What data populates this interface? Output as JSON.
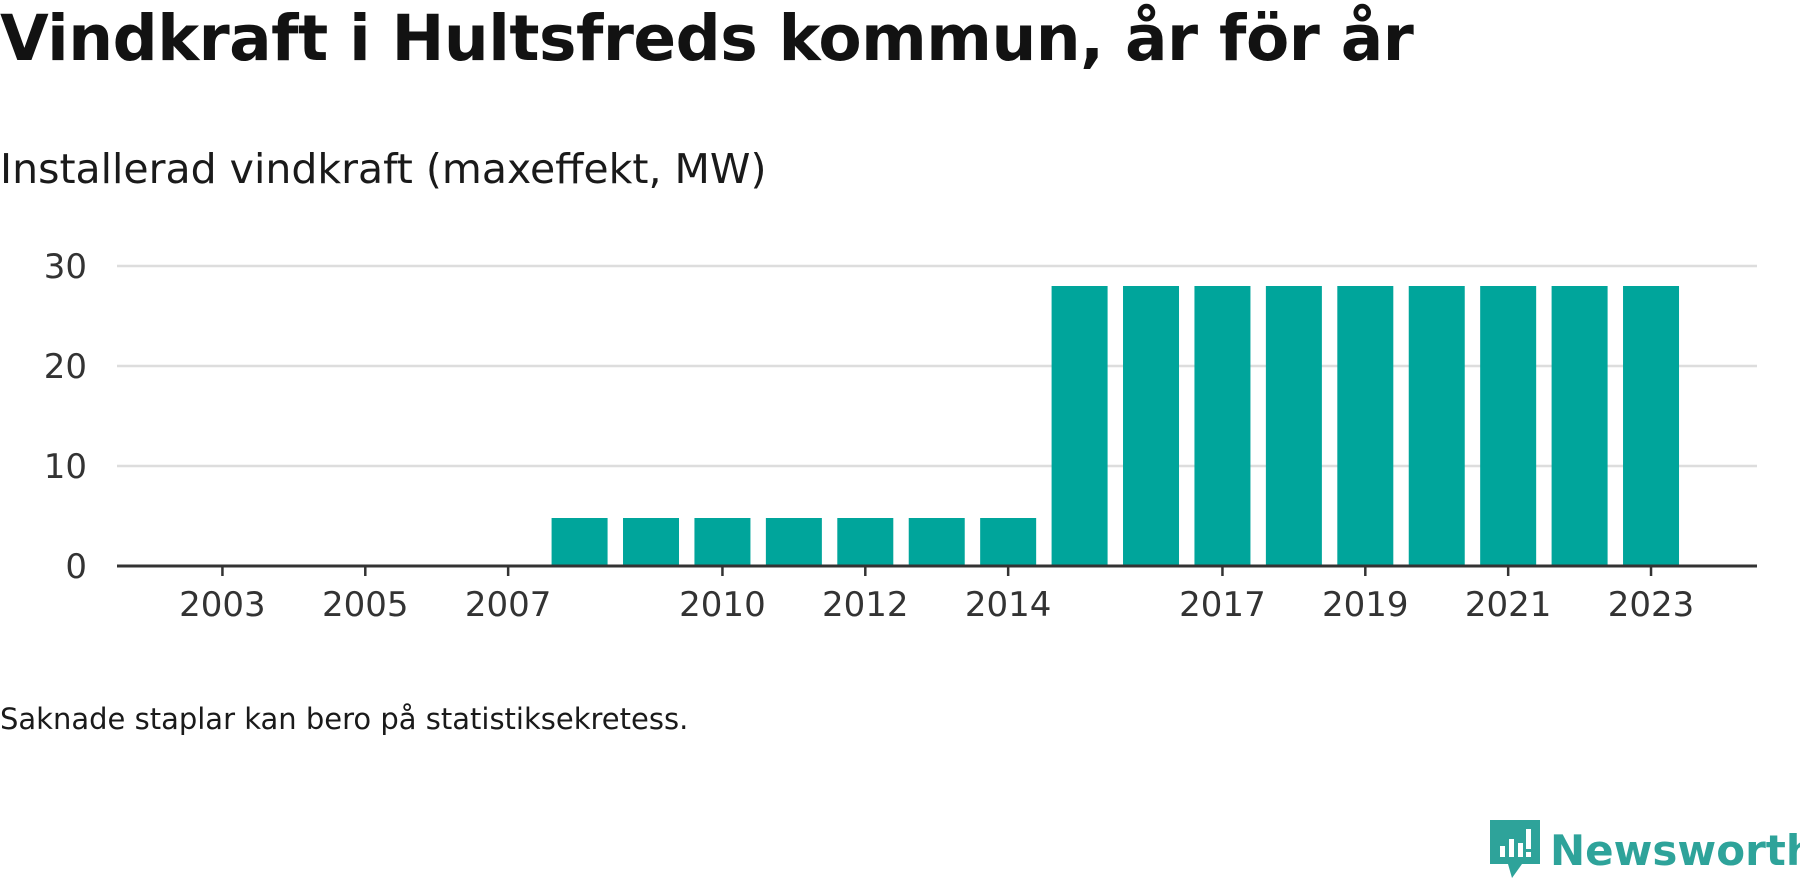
{
  "title": "Vindkraft i Hultsfreds kommun, år för år",
  "subtitle": "Installerad vindkraft (maxeffekt, MW)",
  "footnote": "Saknade staplar kan bero på statistiksekretess.",
  "brand": {
    "name": "Newsworthy",
    "icon": "newsworthy-logo-icon",
    "color": "#2ea39a"
  },
  "chart_data": {
    "type": "bar",
    "categories": [
      "2002",
      "2003",
      "2004",
      "2005",
      "2006",
      "2007",
      "2008",
      "2009",
      "2010",
      "2011",
      "2012",
      "2013",
      "2014",
      "2015",
      "2016",
      "2017",
      "2018",
      "2019",
      "2020",
      "2021",
      "2022",
      "2023"
    ],
    "values": [
      0,
      0,
      0,
      0,
      0,
      0,
      4.8,
      4.8,
      4.8,
      4.8,
      4.8,
      4.8,
      4.8,
      28,
      28,
      28,
      28,
      28,
      28,
      28,
      28,
      28
    ],
    "x_tick_labels": [
      "2003",
      "2005",
      "2007",
      "2010",
      "2012",
      "2014",
      "2017",
      "2019",
      "2021",
      "2023"
    ],
    "y_ticks": [
      0,
      10,
      20,
      30
    ],
    "ylim": [
      0,
      30
    ],
    "grid": true,
    "bar_color": "#00a59b",
    "grid_color": "#dddddd",
    "axis_color": "#333333",
    "xlabel": "",
    "ylabel": ""
  }
}
